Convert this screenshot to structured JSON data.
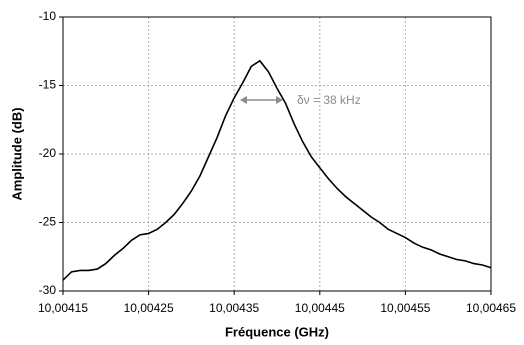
{
  "chart_data": {
    "type": "line",
    "x_label": "Fréquence (GHz)",
    "y_label": "Amplitude (dB)",
    "annotation": "δν = 38 kHz",
    "xlim": [
      10.00415,
      10.00465
    ],
    "xticks": [
      {
        "value": 10.00415,
        "label": "10,00415"
      },
      {
        "value": 10.00425,
        "label": "10,00425"
      },
      {
        "value": 10.00435,
        "label": "10,00435"
      },
      {
        "value": 10.00445,
        "label": "10,00445"
      },
      {
        "value": 10.00455,
        "label": "10,00455"
      },
      {
        "value": 10.00465,
        "label": "10,00465"
      }
    ],
    "ylim": [
      -30,
      -10
    ],
    "yticks": [
      -30,
      -25,
      -20,
      -15,
      -10
    ],
    "grid": true,
    "x": [
      10.00415,
      10.00416,
      10.00417,
      10.00418,
      10.00419,
      10.0042,
      10.00421,
      10.00422,
      10.00423,
      10.00424,
      10.00425,
      10.00426,
      10.00427,
      10.00428,
      10.00429,
      10.0043,
      10.00431,
      10.00432,
      10.00433,
      10.00434,
      10.00435,
      10.00436,
      10.00437,
      10.00438,
      10.00439,
      10.0044,
      10.00441,
      10.00442,
      10.00443,
      10.00444,
      10.00445,
      10.00446,
      10.00447,
      10.00448,
      10.00449,
      10.0045,
      10.00451,
      10.00452,
      10.00453,
      10.00454,
      10.00455,
      10.00456,
      10.00457,
      10.00458,
      10.00459,
      10.0046,
      10.00461,
      10.00462,
      10.00463,
      10.00464,
      10.00465
    ],
    "series": [
      {
        "color": "#000000",
        "values": [
          -29.2,
          -28.6,
          -28.5,
          -28.5,
          -28.4,
          -28.0,
          -27.4,
          -26.9,
          -26.3,
          -25.9,
          -25.8,
          -25.5,
          -25.0,
          -24.4,
          -23.6,
          -22.7,
          -21.6,
          -20.2,
          -18.8,
          -17.2,
          -15.9,
          -14.8,
          -13.6,
          -13.2,
          -14.0,
          -15.2,
          -16.3,
          -17.8,
          -19.1,
          -20.2,
          -21.0,
          -21.8,
          -22.5,
          -23.1,
          -23.6,
          -24.1,
          -24.6,
          -25.0,
          -25.5,
          -25.8,
          -26.1,
          -26.5,
          -26.8,
          -27.0,
          -27.3,
          -27.5,
          -27.7,
          -27.8,
          -28.0,
          -28.1,
          -28.3
        ]
      }
    ]
  }
}
